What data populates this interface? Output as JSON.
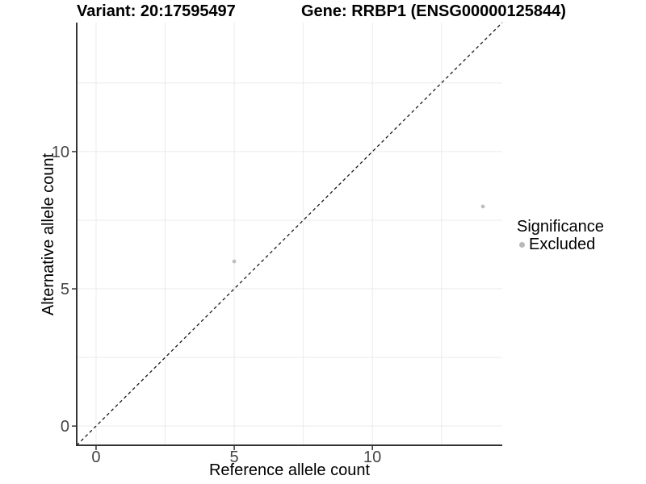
{
  "figure": {
    "title_left": "Variant: 20:17595497",
    "title_right": "Gene: RRBP1 (ENSG00000125844)"
  },
  "chart_data": {
    "type": "scatter",
    "xlabel": "Reference allele count",
    "ylabel": "Alternative allele count",
    "xlim": [
      -0.7,
      14.7
    ],
    "ylim": [
      -0.7,
      14.7
    ],
    "x_ticks": [
      0,
      5,
      10
    ],
    "y_ticks": [
      0,
      5,
      10
    ],
    "x_grid": [
      0,
      2.5,
      5,
      7.5,
      10,
      12.5
    ],
    "y_grid": [
      0,
      2.5,
      5,
      7.5,
      10,
      12.5
    ],
    "grid": true,
    "legend_position": "right",
    "series": [
      {
        "name": "Excluded",
        "color": "#bebebe",
        "points": [
          [
            5,
            6
          ],
          [
            14,
            8
          ]
        ]
      }
    ],
    "identity_line": {
      "slope": 1,
      "intercept": 0,
      "style": "dashed",
      "color": "#1a1a1a"
    },
    "legend": {
      "title": "Significance",
      "items": [
        {
          "label": "Excluded",
          "color": "#b8b8b8"
        }
      ]
    }
  },
  "colors": {
    "background": "#ffffff",
    "grid": "#ebebeb",
    "axis_line": "#333333",
    "tick_text": "#454545",
    "text": "#000000"
  }
}
